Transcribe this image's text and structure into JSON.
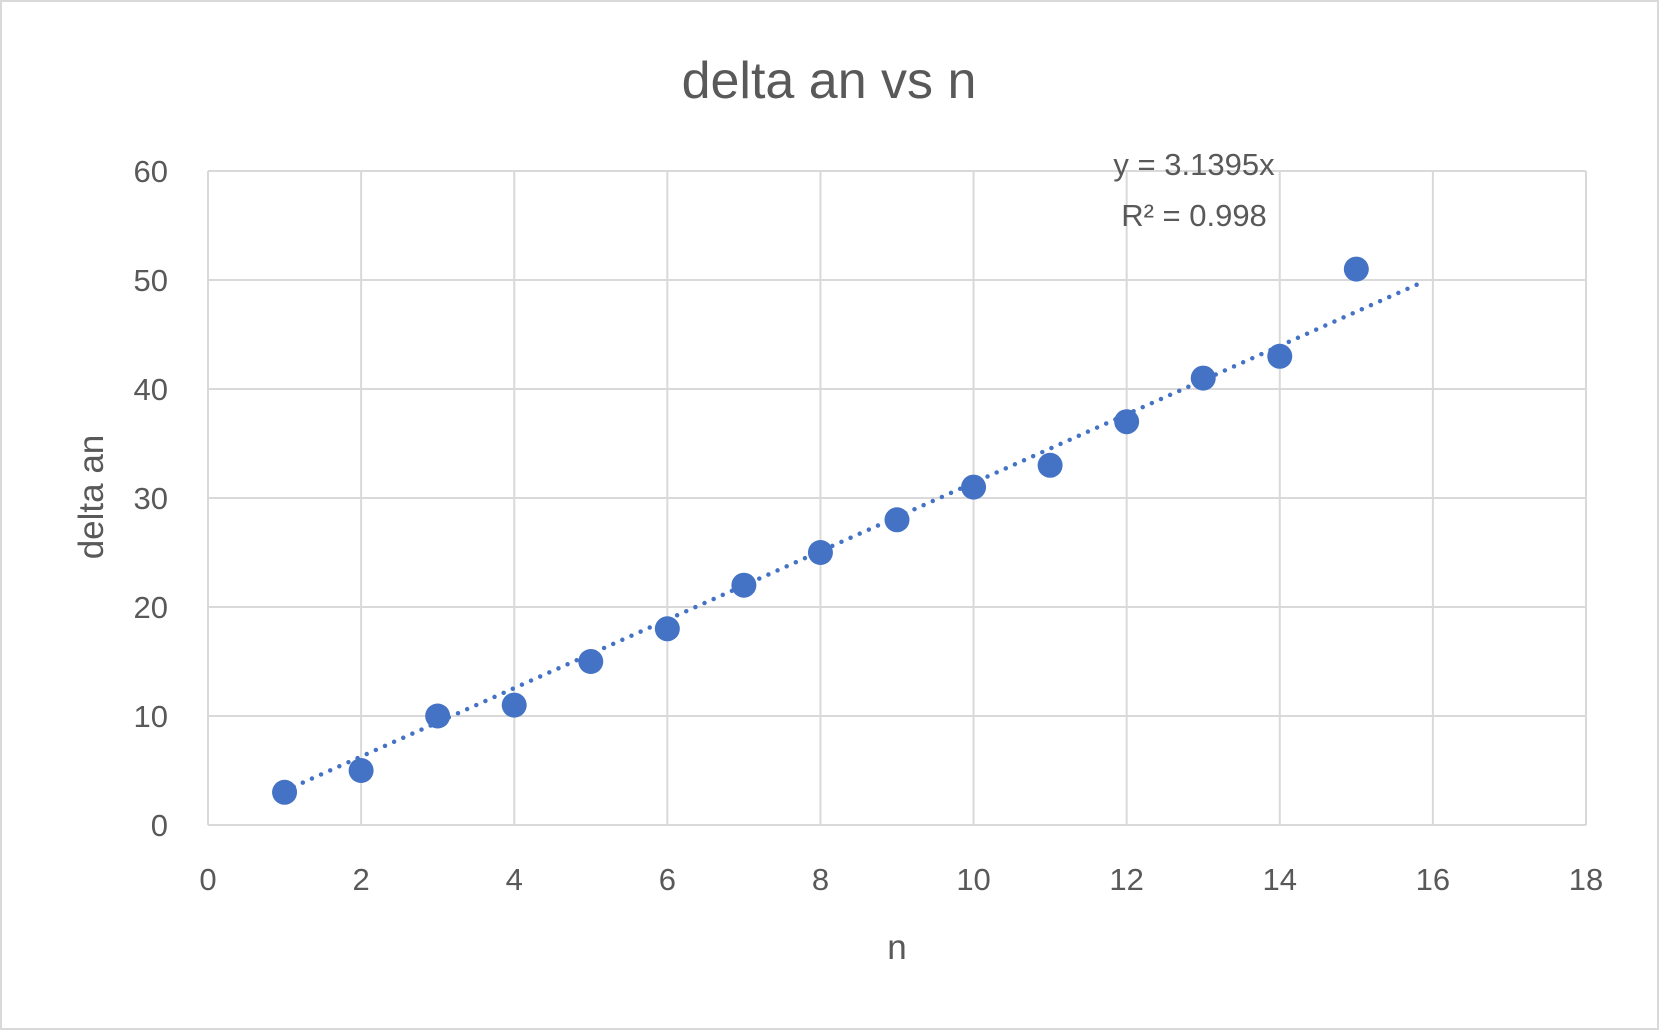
{
  "chart_data": {
    "type": "scatter",
    "title": "delta an vs n",
    "xlabel": "n",
    "ylabel": "delta an",
    "xlim": [
      0,
      18
    ],
    "ylim": [
      0,
      60
    ],
    "xticks": [
      0,
      2,
      4,
      6,
      8,
      10,
      12,
      14,
      16,
      18
    ],
    "yticks": [
      0,
      10,
      20,
      30,
      40,
      50,
      60
    ],
    "grid": true,
    "legend": "none",
    "series": [
      {
        "x": [
          1,
          2,
          3,
          4,
          5,
          6,
          7,
          8,
          9,
          10,
          11,
          12,
          13,
          14,
          15
        ],
        "y": [
          3,
          5,
          10,
          11,
          15,
          18,
          22,
          25,
          28,
          31,
          33,
          37,
          41,
          43,
          51
        ],
        "color": "#4472c4"
      }
    ],
    "trendline": {
      "type": "linear",
      "slope": 3.1395,
      "x_range": [
        1,
        15.9
      ],
      "style": "dotted",
      "color": "#4472c4",
      "equation_label": "y = 3.1395x",
      "r2_label": "R² = 0.998"
    }
  }
}
